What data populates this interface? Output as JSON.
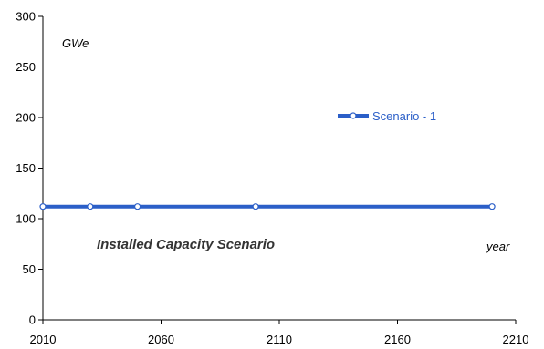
{
  "chart_data": {
    "type": "line",
    "title": "",
    "xlabel": "year",
    "ylabel": "GWe",
    "xlim": [
      2010,
      2210
    ],
    "ylim": [
      0,
      300
    ],
    "x_ticks": [
      2010,
      2060,
      2110,
      2160,
      2210
    ],
    "y_ticks": [
      0,
      50,
      100,
      150,
      200,
      250,
      300
    ],
    "grid": false,
    "legend_position": "upper-right",
    "annotation": "Installed Capacity Scenario",
    "series": [
      {
        "name": "Scenario - 1",
        "color": "#2b5fc8",
        "marker": "circle",
        "x": [
          2010,
          2030,
          2050,
          2100,
          2200
        ],
        "y": [
          112,
          112,
          112,
          112,
          112
        ]
      }
    ]
  }
}
